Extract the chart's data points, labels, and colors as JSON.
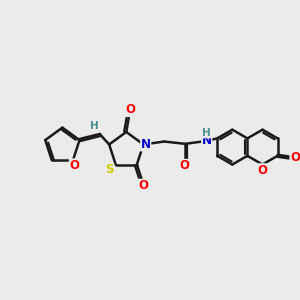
{
  "bg_color": "#ebebeb",
  "bond_color": "#1a1a1a",
  "bond_width": 1.8,
  "dbo": 0.08,
  "atom_colors": {
    "O": "#ff0000",
    "N": "#0000cc",
    "S": "#cccc00",
    "H": "#4a9090",
    "C": "#1a1a1a"
  },
  "font_size": 8.5,
  "fig_size": [
    3.0,
    3.0
  ],
  "dpi": 100
}
